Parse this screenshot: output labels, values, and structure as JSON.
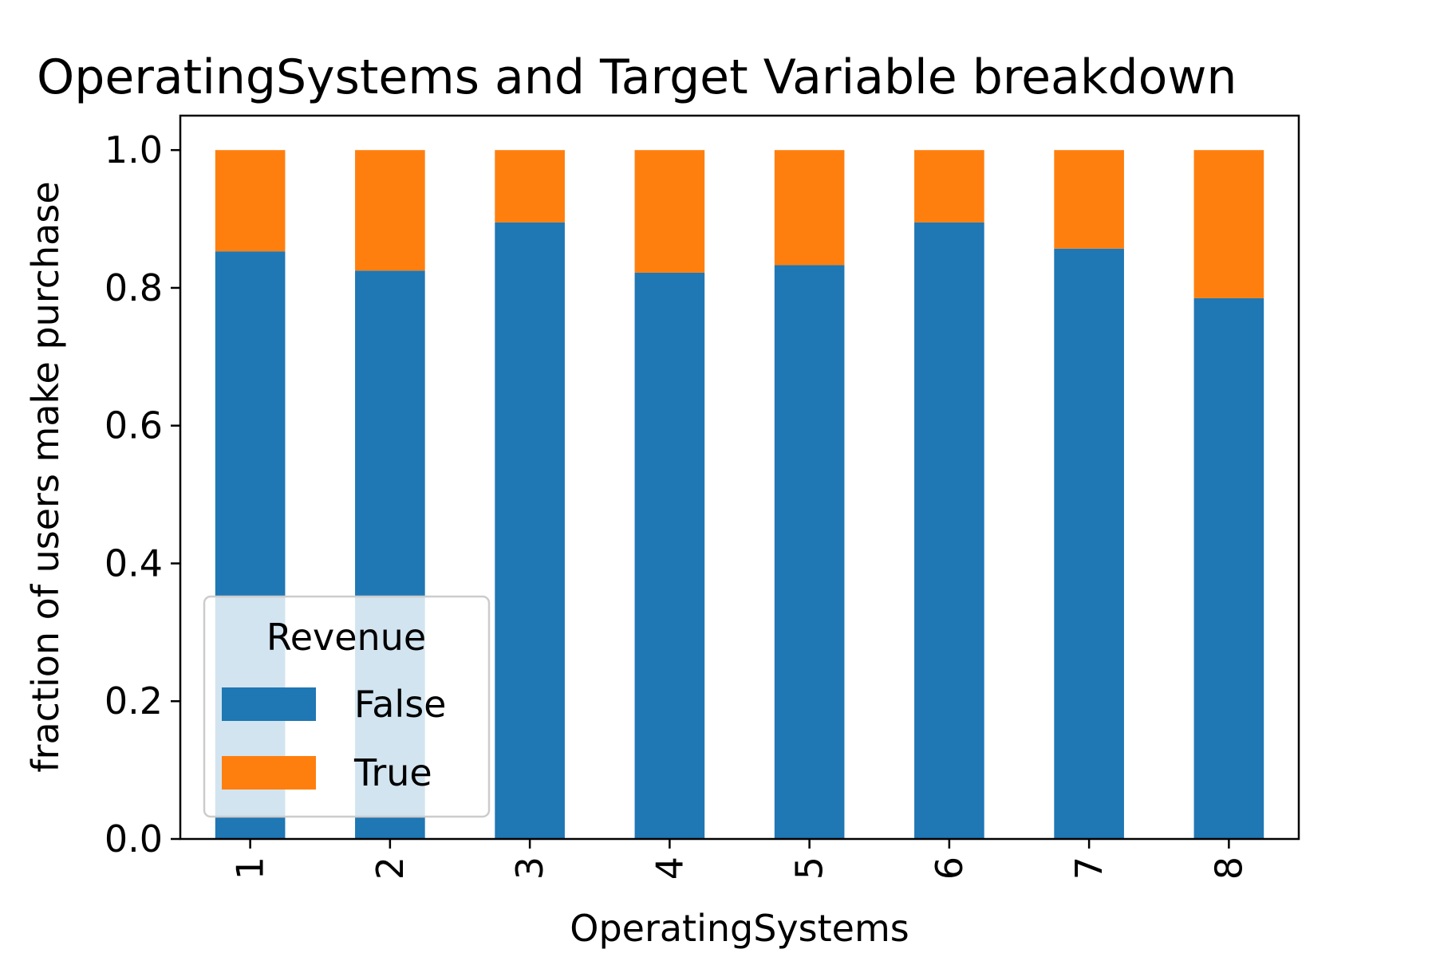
{
  "chart_data": {
    "type": "bar",
    "stacked": true,
    "title": "OperatingSystems and Target Variable breakdown",
    "xlabel": "OperatingSystems",
    "ylabel": "fraction of users make purchase",
    "categories": [
      "1",
      "2",
      "3",
      "4",
      "5",
      "6",
      "7",
      "8"
    ],
    "ylim": [
      0,
      1.05
    ],
    "yticks": [
      "0.0",
      "0.2",
      "0.4",
      "0.6",
      "0.8",
      "1.0"
    ],
    "grid": false,
    "legend": {
      "title": "Revenue",
      "placement": "lower-left"
    },
    "series": [
      {
        "name": "False",
        "color": "#1f77b4",
        "values": [
          0.853,
          0.825,
          0.895,
          0.822,
          0.833,
          0.895,
          0.857,
          0.785
        ]
      },
      {
        "name": "True",
        "color": "#ff7f0e",
        "values": [
          0.147,
          0.175,
          0.105,
          0.178,
          0.167,
          0.105,
          0.143,
          0.215
        ]
      }
    ]
  }
}
